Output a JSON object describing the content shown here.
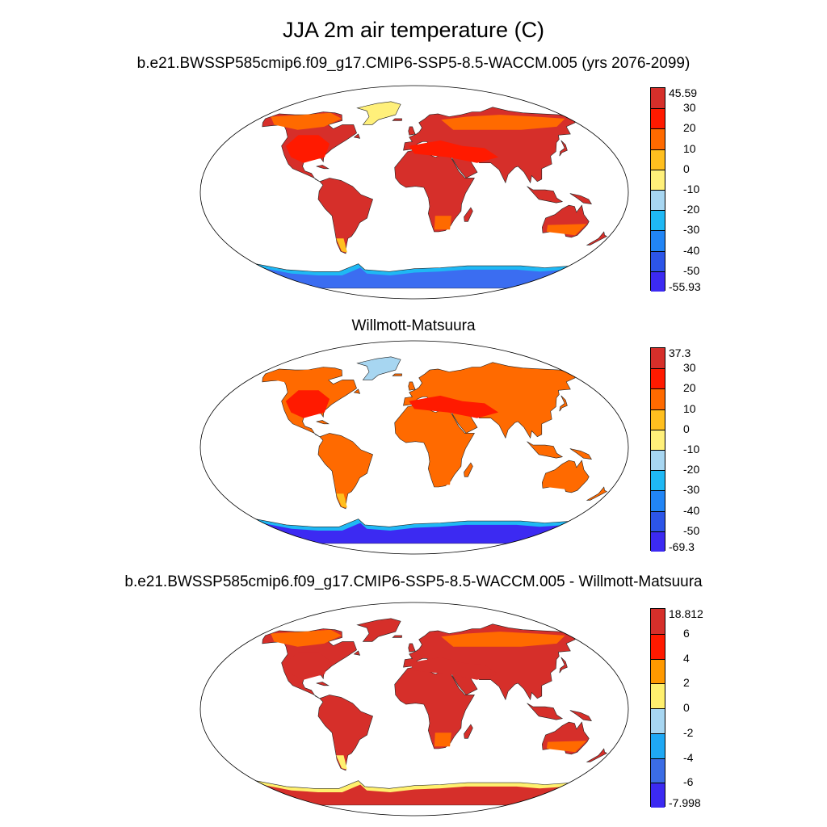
{
  "title": "JJA 2m air temperature (C)",
  "panels": [
    {
      "title": "b.e21.BWSSP585cmip6.f09_g17.CMIP6-SSP5-8.5-WACCM.005 (yrs 2076-2099)",
      "labels": [
        "45.59",
        "30",
        "20",
        "10",
        "0",
        "-10",
        "-20",
        "-30",
        "-40",
        "-50",
        "-55.93"
      ],
      "colors": [
        "#d62f2a",
        "#ff1a00",
        "#ff6a00",
        "#ffbf1f",
        "#fff07a",
        "#a7d6f1",
        "#1fb8f4",
        "#2185f5",
        "#2c55e8",
        "#3c2af2"
      ],
      "land_color": "#d62f2a",
      "hot_color": "#ff1a00",
      "warm_color": "#ff6a00",
      "cool_color": "#ffbf1f",
      "ice_color": "#3b6df1",
      "ice_edge_color": "#1fb8f4",
      "greenland_color": "#fff07a"
    },
    {
      "title": "Willmott-Matsuura",
      "labels": [
        "37.3",
        "30",
        "20",
        "10",
        "0",
        "-10",
        "-20",
        "-30",
        "-40",
        "-50",
        "-69.3"
      ],
      "colors": [
        "#d62f2a",
        "#ff1a00",
        "#ff6a00",
        "#ffbf1f",
        "#fff07a",
        "#a7d6f1",
        "#1fb8f4",
        "#2185f5",
        "#2c55e8",
        "#3c2af2"
      ],
      "land_color": "#ff6a00",
      "hot_color": "#ff1a00",
      "warm_color": "#ff6a00",
      "cool_color": "#ffbf1f",
      "ice_color": "#3c2af2",
      "ice_edge_color": "#1fb8f4",
      "greenland_color": "#a7d6f1"
    },
    {
      "title": "b.e21.BWSSP585cmip6.f09_g17.CMIP6-SSP5-8.5-WACCM.005 - Willmott-Matsuura",
      "labels": [
        "18.812",
        "6",
        "4",
        "2",
        "0",
        "-2",
        "-4",
        "-6",
        "-7.998"
      ],
      "colors": [
        "#d62f2a",
        "#ff1a00",
        "#ff9900",
        "#fff06e",
        "#a7d6f1",
        "#1fa8f4",
        "#3b6ce5",
        "#3c2af2"
      ],
      "land_color": "#d62f2a",
      "hot_color": "#d62f2a",
      "warm_color": "#ff6a00",
      "cool_color": "#fff06e",
      "ice_color": "#d62f2a",
      "ice_edge_color": "#fff06e",
      "greenland_color": "#d62f2a"
    }
  ]
}
